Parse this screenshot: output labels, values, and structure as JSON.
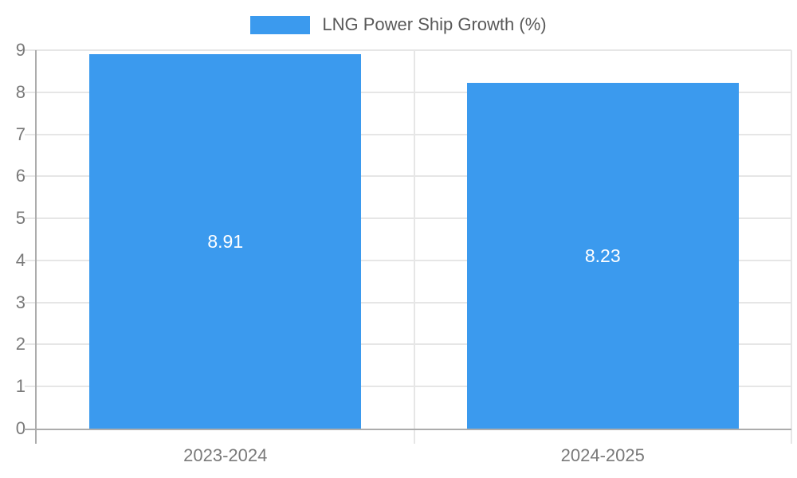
{
  "legend": {
    "label": "LNG Power Ship Growth (%)"
  },
  "colors": {
    "bar": "#3B9AEE",
    "grid": "#E6E6E6",
    "axis": "#ACACAC",
    "tick_label": "#7A7A7A",
    "legend_text": "#595959",
    "value_label": "#FFFFFF",
    "background": "#FFFFFF"
  },
  "chart_data": {
    "type": "bar",
    "title": "",
    "categories": [
      "2023-2024",
      "2024-2025"
    ],
    "series": [
      {
        "name": "LNG Power Ship Growth (%)",
        "values": [
          8.91,
          8.23
        ]
      }
    ],
    "value_labels": [
      "8.91",
      "8.23"
    ],
    "xlabel": "",
    "ylabel": "",
    "ylim": [
      0,
      9
    ],
    "yticks": [
      0,
      1,
      2,
      3,
      4,
      5,
      6,
      7,
      8,
      9
    ],
    "grid": true,
    "legend_position": "top-center",
    "bar_label_position": "center"
  }
}
